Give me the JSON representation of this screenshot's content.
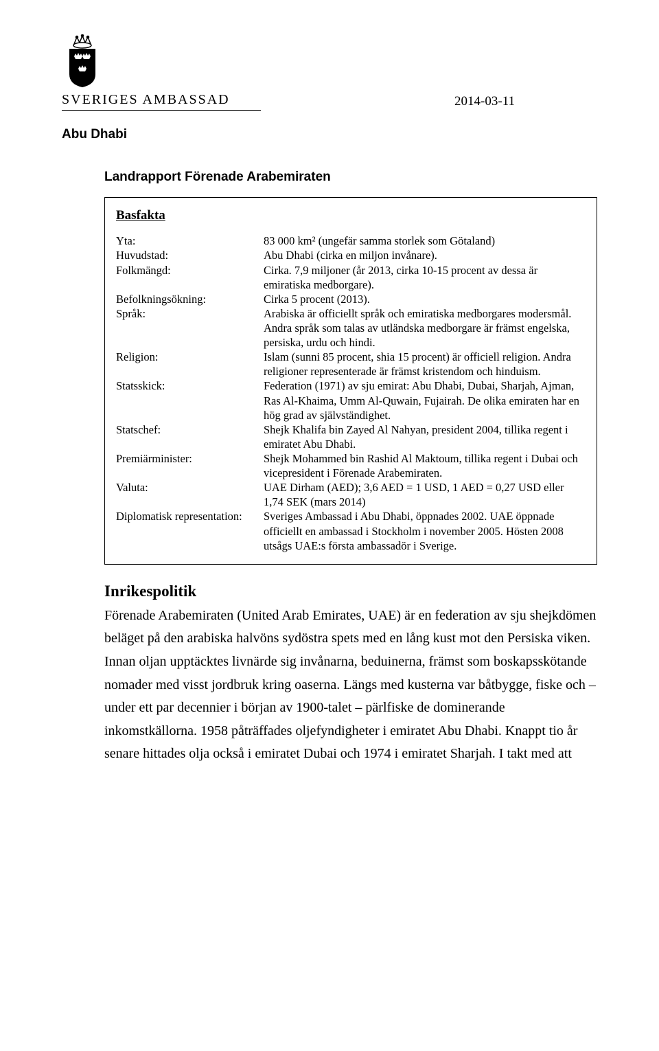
{
  "header": {
    "org_name": "SVERIGES AMBASSAD",
    "date": "2014-03-11",
    "location": "Abu Dhabi"
  },
  "report_title": "Landrapport Förenade Arabemiraten",
  "factbox": {
    "title": "Basfakta",
    "rows": [
      {
        "label": "Yta:",
        "value": "83 000 km² (ungefär samma storlek som Götaland)"
      },
      {
        "label": "Huvudstad:",
        "value": "Abu Dhabi (cirka en miljon invånare)."
      },
      {
        "label": "Folkmängd:",
        "value": "Cirka. 7,9 miljoner (år 2013, cirka 10-15 procent av dessa är emiratiska medborgare)."
      },
      {
        "label": "Befolkningsökning:",
        "value": "Cirka 5 procent (2013)."
      },
      {
        "label": "Språk:",
        "value": "Arabiska är officiellt språk och emiratiska medborgares modersmål. Andra språk som talas av utländska medborgare är främst engelska, persiska, urdu och hindi."
      },
      {
        "label": "Religion:",
        "value": "Islam (sunni 85 procent, shia 15 procent) är officiell religion. Andra religioner representerade är främst kristendom och hinduism."
      },
      {
        "label": "Statsskick:",
        "value": "Federation (1971) av sju emirat: Abu Dhabi, Dubai, Sharjah, Ajman, Ras Al-Khaima, Umm Al-Quwain, Fujairah. De olika emiraten har en hög grad av självständighet."
      },
      {
        "label": "Statschef:",
        "value": "Shejk Khalifa bin Zayed Al Nahyan, president 2004, tillika regent i emiratet Abu Dhabi."
      },
      {
        "label": "Premiärminister:",
        "value": "Shejk Mohammed bin Rashid Al Maktoum, tillika regent i Dubai och vicepresident i Förenade Arabemiraten."
      },
      {
        "label": "Valuta:",
        "value": "UAE Dirham (AED); 3,6 AED = 1 USD, 1 AED = 0,27 USD eller 1,74 SEK (mars 2014)"
      },
      {
        "label": "Diplomatisk representation:",
        "value": "Sveriges Ambassad i Abu Dhabi, öppnades 2002. UAE öppnade officiellt en ambassad i Stockholm i november 2005. Hösten 2008 utsågs UAE:s första ambassadör i Sverige."
      }
    ]
  },
  "section": {
    "title": "Inrikespolitik",
    "body": "Förenade Arabemiraten (United Arab Emirates, UAE) är en federation av sju shejkdömen beläget på den arabiska halvöns sydöstra spets med en lång kust mot den Persiska viken. Innan oljan upptäcktes livnärde sig invånarna, beduinerna, främst som boskapsskötande nomader med visst jordbruk kring oaserna. Längs med kusterna var båtbygge, fiske och – under ett par decennier i början av 1900-talet – pärlfiske de dominerande inkomstkällorna. 1958 påträffades oljefyndigheter i emiratet Abu Dhabi. Knappt tio år senare hittades olja också i emiratet Dubai och 1974 i emiratet Sharjah. I takt med att"
  },
  "colors": {
    "text": "#000000",
    "background": "#ffffff",
    "border": "#000000"
  }
}
